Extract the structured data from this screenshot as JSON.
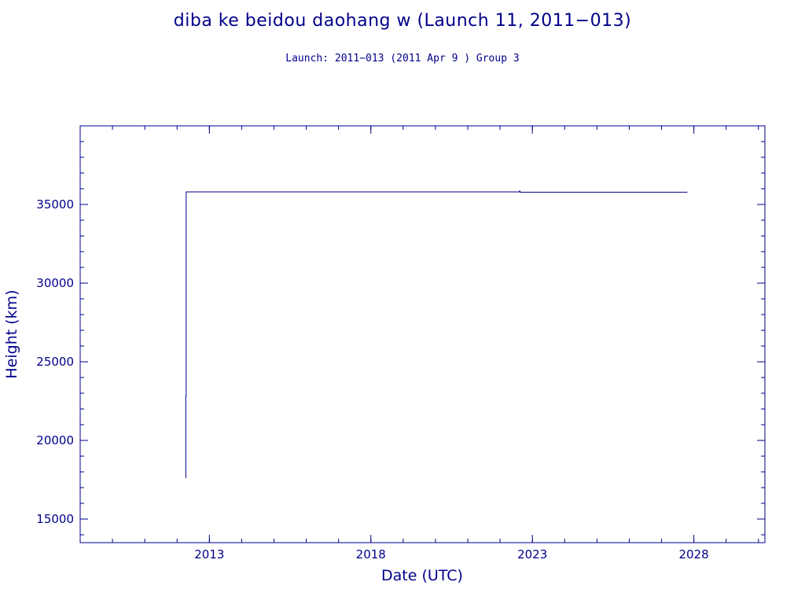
{
  "colors": {
    "ink": "#00008b"
  },
  "header": {
    "title": "diba ke beidou daohang w (Launch 11, 2011−013)",
    "subtitle": "Launch: 2011−013  (2011 Apr  9 )  Group 3"
  },
  "chart_data": {
    "type": "line",
    "xlabel": "Date (UTC)",
    "ylabel": "Height (km)",
    "xlim": [
      2009.0,
      2030.2
    ],
    "ylim": [
      13500,
      40000
    ],
    "x_ticks": [
      2013,
      2018,
      2023,
      2028
    ],
    "x_tick_labels": [
      "2013",
      "2018",
      "2023",
      "2028"
    ],
    "y_ticks": [
      15000,
      20000,
      25000,
      30000,
      35000
    ],
    "y_tick_labels": [
      "15000",
      "20000",
      "25000",
      "30000",
      "35000"
    ],
    "grid": false,
    "series": [
      {
        "x": [
          2012.27,
          2012.27,
          2012.28,
          2012.28,
          2012.3,
          2022.6,
          2022.6,
          2022.62,
          2022.62,
          2027.8
        ],
        "y": [
          17600,
          22800,
          22800,
          35800,
          35800,
          35800,
          35850,
          35850,
          35780,
          35780
        ]
      }
    ]
  }
}
